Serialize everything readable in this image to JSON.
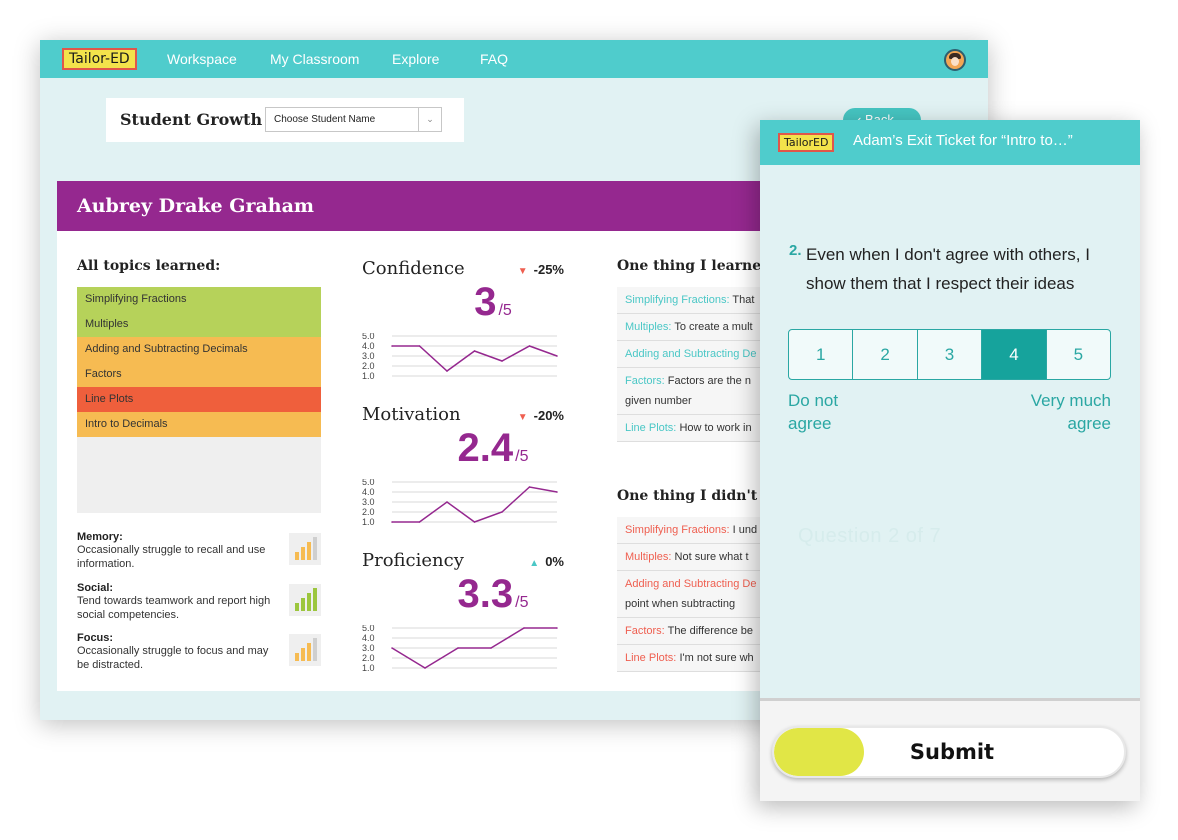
{
  "app": {
    "logo": "Tailor-ED",
    "avatar_icon": "user-avatar-icon"
  },
  "nav": [
    {
      "label": "Workspace"
    },
    {
      "label": "My Classroom"
    },
    {
      "label": "Explore"
    },
    {
      "label": "FAQ"
    }
  ],
  "growth": {
    "title": "Student Growth",
    "select_value": "Choose Student Name",
    "back_label": "Back"
  },
  "student": {
    "name": "Aubrey Drake Graham"
  },
  "topics": {
    "title": "All topics learned:",
    "items": [
      {
        "label": "Simplifying Fractions",
        "color": "#b6d25a"
      },
      {
        "label": "Multiples",
        "color": "#b6d25a"
      },
      {
        "label": "Adding and Subtracting Decimals",
        "color": "#f6bb52"
      },
      {
        "label": "Factors",
        "color": "#f6bb52"
      },
      {
        "label": "Line Plots",
        "color": "#ef5f3c"
      },
      {
        "label": "Intro to Decimals",
        "color": "#f6bb52"
      }
    ]
  },
  "traits": [
    {
      "label": "Memory:",
      "desc": "Occasionally struggle to recall and use information.",
      "icon": "bar-level-medium-icon",
      "level": 2
    },
    {
      "label": "Social:",
      "desc": "Tend towards teamwork and report high social competencies.",
      "icon": "bar-level-high-icon",
      "level": 4
    },
    {
      "label": "Focus:",
      "desc": "Occasionally struggle to focus and may be distracted.",
      "icon": "bar-level-medium-icon",
      "level": 2
    }
  ],
  "metrics": [
    {
      "title": "Confidence",
      "change": "-25%",
      "trend": "down",
      "value": "3",
      "denom": "/5"
    },
    {
      "title": "Motivation",
      "change": "-20%",
      "trend": "down",
      "value": "2.4",
      "denom": "/5"
    },
    {
      "title": "Proficiency",
      "change": "0%",
      "trend": "up",
      "value": "3.3",
      "denom": "/5"
    }
  ],
  "chart_data": [
    {
      "type": "line",
      "title": "Confidence",
      "y_ticks": [
        "5.0",
        "4.0",
        "3.0",
        "2.0",
        "1.0"
      ],
      "ylim": [
        1,
        5
      ],
      "values": [
        4.0,
        4.0,
        1.5,
        3.5,
        2.5,
        4.0,
        3.0
      ]
    },
    {
      "type": "line",
      "title": "Motivation",
      "y_ticks": [
        "5.0",
        "4.0",
        "3.0",
        "2.0",
        "1.0"
      ],
      "ylim": [
        1,
        5
      ],
      "values": [
        1.0,
        1.0,
        3.0,
        1.0,
        2.0,
        4.5,
        4.0
      ]
    },
    {
      "type": "line",
      "title": "Proficiency",
      "y_ticks": [
        "5.0",
        "4.0",
        "3.0",
        "2.0",
        "1.0"
      ],
      "ylim": [
        1,
        5
      ],
      "values": [
        3.0,
        1.0,
        3.0,
        3.0,
        5.0,
        5.0
      ]
    }
  ],
  "learned": {
    "title": "One thing I learned t",
    "notes": [
      {
        "topic": "Simplifying Fractions:",
        "text": "That"
      },
      {
        "topic": "Multiples:",
        "text": "To create a mult"
      },
      {
        "topic": "Adding and Subtracting De",
        "text": ""
      },
      {
        "topic": "Factors:",
        "text": "Factors are the n",
        "extra": "given number"
      },
      {
        "topic": "Line Plots:",
        "text": "How to work in"
      }
    ]
  },
  "not_understood": {
    "title": "One thing I didn't ur",
    "notes": [
      {
        "topic": "Simplifying Fractions:",
        "text": "I und"
      },
      {
        "topic": "Multiples:",
        "text": "Not sure what t"
      },
      {
        "topic": "Adding and Subtracting De",
        "text": "",
        "extra": "point when subtracting"
      },
      {
        "topic": "Factors:",
        "text": "The difference be"
      },
      {
        "topic": "Line Plots:",
        "text": "I'm not sure wh"
      }
    ]
  },
  "exit_ticket": {
    "logo": "TailorED",
    "title": "Adam’s Exit Ticket for “Intro to…”",
    "question_number": "2.",
    "question_text": "Even when I don't agree with others, I show them that I respect their ideas",
    "options": [
      "1",
      "2",
      "3",
      "4",
      "5"
    ],
    "selected": "4",
    "label_low": "Do not agree",
    "label_high": "Very much agree",
    "question_count": "Question 2 of 7",
    "submit_label": "Submit"
  }
}
